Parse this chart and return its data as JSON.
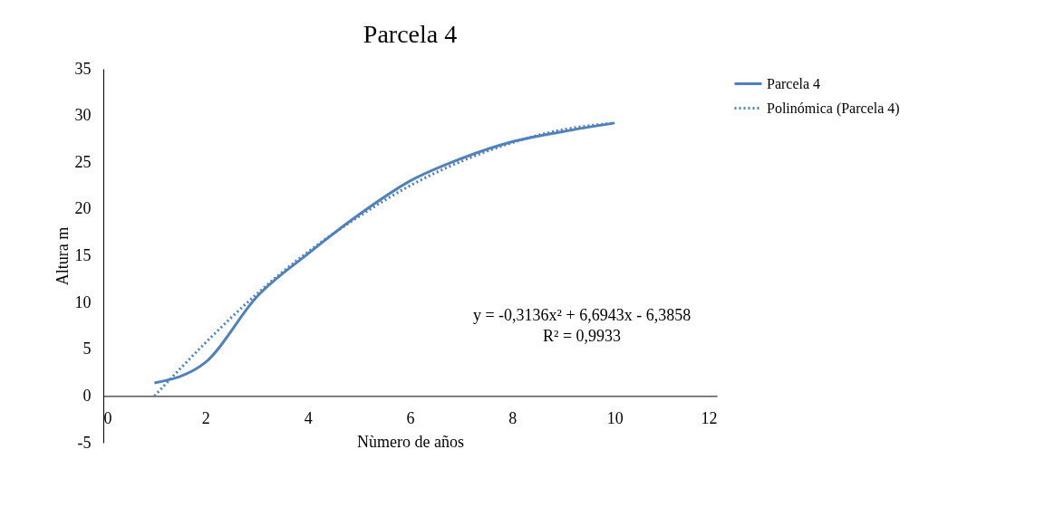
{
  "chart_data": {
    "type": "line",
    "title": "Parcela 4",
    "xlabel": "Nùmero de años",
    "ylabel": "Altura m",
    "xlim": [
      0,
      12
    ],
    "xticks": [
      0,
      2,
      4,
      6,
      8,
      10,
      12
    ],
    "ylim": [
      -5,
      35
    ],
    "yticks": [
      -5,
      0,
      5,
      10,
      15,
      20,
      25,
      30,
      35
    ],
    "grid": false,
    "legend": "right",
    "marker": "none",
    "series": [
      {
        "name": "Parcela 4",
        "color": "#4f81bd",
        "line_style": "solid",
        "x": [
          1,
          2,
          3,
          4,
          5,
          6,
          7,
          8,
          9,
          10
        ],
        "values": [
          1.4,
          3.6,
          10.6,
          15.2,
          19.4,
          23.0,
          25.4,
          27.2,
          28.3,
          29.2
        ]
      },
      {
        "name": "Polinómica (Parcela 4)",
        "color": "#4f81bd",
        "line_style": "dotted",
        "x": [
          1,
          2,
          3,
          4,
          5,
          6,
          7,
          8,
          9,
          10
        ],
        "values": [
          0.0,
          5.7,
          10.9,
          15.4,
          19.2,
          22.5,
          25.1,
          27.1,
          28.5,
          29.2
        ]
      }
    ],
    "annotations": [
      "y = -0,3136x² + 6,6943x - 6,3858",
      "R² = 0,9933"
    ]
  }
}
